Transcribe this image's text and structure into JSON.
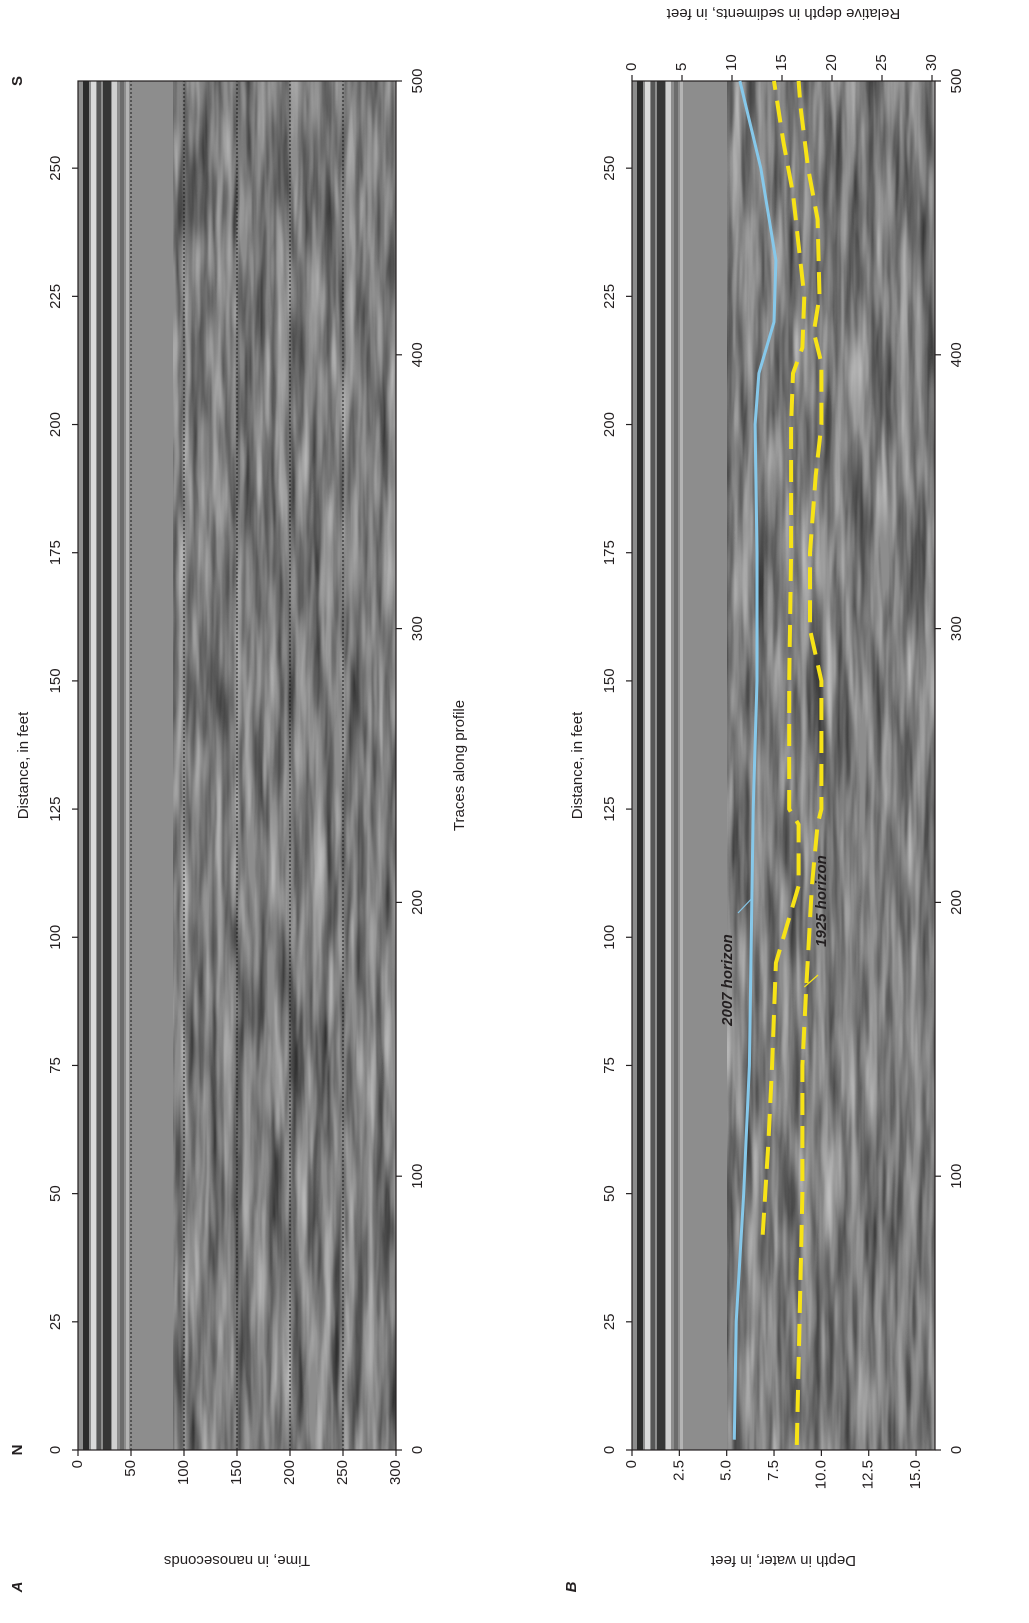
{
  "chart_data": [
    {
      "type": "radargram",
      "panel_label": "A",
      "start_label": "N",
      "end_label": "S",
      "xlabel": "Distance, in feet",
      "xlim": [
        0,
        267
      ],
      "xticks": [
        0,
        25,
        50,
        75,
        100,
        125,
        150,
        175,
        200,
        225,
        250
      ],
      "x2label": "Traces along profile",
      "x2lim": [
        0,
        500
      ],
      "x2ticks": [
        0,
        100,
        200,
        300,
        400,
        500
      ],
      "ylabel": "Time, in nanoseconds",
      "ylim": [
        0,
        300
      ],
      "yticks": [
        0,
        50,
        100,
        150,
        200,
        250,
        300
      ],
      "grid": true
    },
    {
      "type": "radargram",
      "panel_label": "B",
      "xlabel": "Distance, in feet",
      "xlim": [
        0,
        267
      ],
      "xticks": [
        0,
        25,
        50,
        75,
        100,
        125,
        150,
        175,
        200,
        225,
        250
      ],
      "x2lim": [
        0,
        500
      ],
      "x2ticks": [
        0,
        100,
        200,
        300,
        400,
        500
      ],
      "ylabel": "Depth in water, in feet",
      "ylim": [
        0,
        16
      ],
      "yticks": [
        0,
        2.5,
        {
          "value": 5,
          "label": "5.0"
        },
        7.5,
        {
          "value": 10,
          "label": "10.0"
        },
        12.5,
        {
          "value": 15,
          "label": "15.0"
        }
      ],
      "y2label": "Relative depth in sediments, in feet",
      "y2lim": [
        0,
        30.3
      ],
      "y2ticks": [
        0,
        5,
        10,
        15,
        20,
        25,
        30
      ],
      "series": [
        {
          "name": "2007 horizon",
          "color": "#86c8ea",
          "style": "solid",
          "x": [
            2,
            25,
            50,
            75,
            100,
            125,
            150,
            175,
            200,
            210,
            220,
            232,
            250,
            267
          ],
          "values": [
            5.4,
            5.5,
            5.9,
            6.2,
            6.3,
            6.4,
            6.6,
            6.6,
            6.5,
            6.7,
            7.5,
            7.6,
            6.8,
            5.7
          ]
        },
        {
          "name": "1925 horizon",
          "color": "#f7e316",
          "style": "dashed",
          "x": [
            42,
            60,
            75,
            95,
            110,
            122,
            125,
            150,
            175,
            200,
            210,
            215,
            225,
            235,
            245,
            255,
            267
          ],
          "values": [
            6.9,
            7.2,
            7.4,
            7.6,
            8.8,
            8.8,
            8.3,
            8.3,
            8.4,
            8.4,
            8.5,
            9.0,
            9.1,
            8.8,
            8.5,
            8.0,
            7.5
          ],
          "lower_x": [
            1,
            50,
            75,
            90,
            110,
            122,
            125,
            150,
            160,
            175,
            190,
            200,
            212,
            218,
            225,
            240,
            250,
            262,
            267
          ],
          "lower_values": [
            8.7,
            9.0,
            9.0,
            9.2,
            9.5,
            9.8,
            10.0,
            10.0,
            9.4,
            9.4,
            9.7,
            10.0,
            10.0,
            9.6,
            9.9,
            9.8,
            9.3,
            8.9,
            8.8
          ]
        }
      ]
    }
  ]
}
